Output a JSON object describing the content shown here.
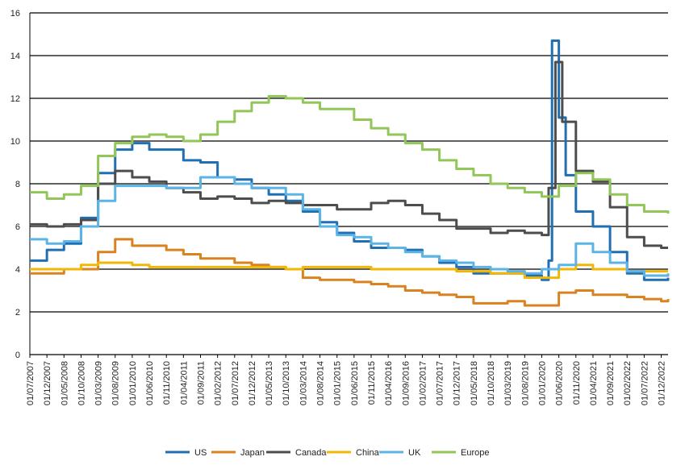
{
  "chart_data": {
    "type": "line",
    "title": "",
    "xlabel": "",
    "ylabel": "",
    "ylim": [
      0,
      16
    ],
    "yticks": [
      0,
      2,
      4,
      6,
      8,
      10,
      12,
      14,
      16
    ],
    "grid": "horizontal",
    "legend_position": "bottom",
    "x_tick_labels": [
      "01/07/2007",
      "01/12/2007",
      "01/05/2008",
      "01/10/2008",
      "01/03/2009",
      "01/08/2009",
      "01/01/2010",
      "01/06/2010",
      "01/11/2010",
      "01/04/2011",
      "01/09/2011",
      "01/02/2012",
      "01/07/2012",
      "01/12/2012",
      "01/05/2013",
      "01/10/2013",
      "01/03/2014",
      "01/08/2014",
      "01/01/2015",
      "01/06/2015",
      "01/11/2015",
      "01/04/2016",
      "01/09/2016",
      "01/02/2017",
      "01/07/2017",
      "01/12/2017",
      "01/05/2018",
      "01/10/2018",
      "01/03/2019",
      "01/08/2019",
      "01/01/2020",
      "01/06/2020",
      "01/11/2020",
      "01/04/2021",
      "01/09/2021",
      "01/02/2022",
      "01/07/2022",
      "01/12/2022"
    ],
    "series": [
      {
        "name": "US",
        "color": "#1f6fb2",
        "points": [
          [
            "2007-07",
            4.4
          ],
          [
            "2007-12",
            4.9
          ],
          [
            "2008-05",
            5.2
          ],
          [
            "2008-10",
            6.4
          ],
          [
            "2009-03",
            8.5
          ],
          [
            "2009-08",
            9.6
          ],
          [
            "2010-01",
            9.9
          ],
          [
            "2010-06",
            9.6
          ],
          [
            "2010-11",
            9.6
          ],
          [
            "2011-04",
            9.1
          ],
          [
            "2011-09",
            9.0
          ],
          [
            "2012-02",
            8.3
          ],
          [
            "2012-07",
            8.2
          ],
          [
            "2012-12",
            7.8
          ],
          [
            "2013-05",
            7.5
          ],
          [
            "2013-10",
            7.2
          ],
          [
            "2014-03",
            6.7
          ],
          [
            "2014-08",
            6.2
          ],
          [
            "2015-01",
            5.7
          ],
          [
            "2015-06",
            5.3
          ],
          [
            "2015-11",
            5.0
          ],
          [
            "2016-04",
            5.0
          ],
          [
            "2016-09",
            4.9
          ],
          [
            "2017-02",
            4.6
          ],
          [
            "2017-07",
            4.3
          ],
          [
            "2017-12",
            4.1
          ],
          [
            "2018-05",
            3.8
          ],
          [
            "2018-10",
            3.8
          ],
          [
            "2019-03",
            3.8
          ],
          [
            "2019-08",
            3.7
          ],
          [
            "2020-01",
            3.5
          ],
          [
            "2020-03",
            4.4
          ],
          [
            "2020-04",
            14.7
          ],
          [
            "2020-06",
            11.1
          ],
          [
            "2020-08",
            8.4
          ],
          [
            "2020-11",
            6.7
          ],
          [
            "2021-04",
            6.0
          ],
          [
            "2021-09",
            4.8
          ],
          [
            "2022-02",
            3.8
          ],
          [
            "2022-07",
            3.5
          ],
          [
            "2022-12",
            3.5
          ],
          [
            "2023-02",
            3.6
          ]
        ]
      },
      {
        "name": "Japan",
        "color": "#d9821f",
        "points": [
          [
            "2007-07",
            3.8
          ],
          [
            "2007-12",
            3.8
          ],
          [
            "2008-05",
            4.0
          ],
          [
            "2008-10",
            4.0
          ],
          [
            "2009-03",
            4.8
          ],
          [
            "2009-08",
            5.4
          ],
          [
            "2010-01",
            5.1
          ],
          [
            "2010-06",
            5.1
          ],
          [
            "2010-11",
            4.9
          ],
          [
            "2011-04",
            4.7
          ],
          [
            "2011-09",
            4.5
          ],
          [
            "2012-02",
            4.5
          ],
          [
            "2012-07",
            4.3
          ],
          [
            "2012-12",
            4.2
          ],
          [
            "2013-05",
            4.1
          ],
          [
            "2013-10",
            4.0
          ],
          [
            "2014-03",
            3.6
          ],
          [
            "2014-08",
            3.5
          ],
          [
            "2015-01",
            3.5
          ],
          [
            "2015-06",
            3.4
          ],
          [
            "2015-11",
            3.3
          ],
          [
            "2016-04",
            3.2
          ],
          [
            "2016-09",
            3.0
          ],
          [
            "2017-02",
            2.9
          ],
          [
            "2017-07",
            2.8
          ],
          [
            "2017-12",
            2.7
          ],
          [
            "2018-05",
            2.4
          ],
          [
            "2018-10",
            2.4
          ],
          [
            "2019-03",
            2.5
          ],
          [
            "2019-08",
            2.3
          ],
          [
            "2020-01",
            2.3
          ],
          [
            "2020-06",
            2.9
          ],
          [
            "2020-11",
            3.0
          ],
          [
            "2021-04",
            2.8
          ],
          [
            "2021-09",
            2.8
          ],
          [
            "2022-02",
            2.7
          ],
          [
            "2022-07",
            2.6
          ],
          [
            "2022-12",
            2.5
          ],
          [
            "2023-02",
            2.6
          ]
        ]
      },
      {
        "name": "Canada",
        "color": "#4d4d4d",
        "points": [
          [
            "2007-07",
            6.1
          ],
          [
            "2007-12",
            6.0
          ],
          [
            "2008-05",
            6.1
          ],
          [
            "2008-10",
            6.3
          ],
          [
            "2009-03",
            8.0
          ],
          [
            "2009-08",
            8.6
          ],
          [
            "2010-01",
            8.3
          ],
          [
            "2010-06",
            8.1
          ],
          [
            "2010-11",
            7.8
          ],
          [
            "2011-04",
            7.6
          ],
          [
            "2011-09",
            7.3
          ],
          [
            "2012-02",
            7.4
          ],
          [
            "2012-07",
            7.3
          ],
          [
            "2012-12",
            7.1
          ],
          [
            "2013-05",
            7.2
          ],
          [
            "2013-10",
            7.1
          ],
          [
            "2014-03",
            7.0
          ],
          [
            "2014-08",
            7.0
          ],
          [
            "2015-01",
            6.8
          ],
          [
            "2015-06",
            6.8
          ],
          [
            "2015-11",
            7.1
          ],
          [
            "2016-04",
            7.2
          ],
          [
            "2016-09",
            7.0
          ],
          [
            "2017-02",
            6.6
          ],
          [
            "2017-07",
            6.3
          ],
          [
            "2017-12",
            5.9
          ],
          [
            "2018-05",
            5.9
          ],
          [
            "2018-10",
            5.7
          ],
          [
            "2019-03",
            5.8
          ],
          [
            "2019-08",
            5.7
          ],
          [
            "2020-01",
            5.6
          ],
          [
            "2020-03",
            7.8
          ],
          [
            "2020-05",
            13.7
          ],
          [
            "2020-07",
            10.9
          ],
          [
            "2020-11",
            8.6
          ],
          [
            "2021-04",
            8.1
          ],
          [
            "2021-09",
            6.9
          ],
          [
            "2022-02",
            5.5
          ],
          [
            "2022-07",
            5.1
          ],
          [
            "2022-12",
            5.0
          ],
          [
            "2023-02",
            5.0
          ]
        ]
      },
      {
        "name": "China",
        "color": "#f2b705",
        "points": [
          [
            "2007-07",
            4.0
          ],
          [
            "2007-12",
            4.0
          ],
          [
            "2008-05",
            4.0
          ],
          [
            "2008-10",
            4.2
          ],
          [
            "2009-03",
            4.3
          ],
          [
            "2009-08",
            4.3
          ],
          [
            "2010-01",
            4.2
          ],
          [
            "2010-06",
            4.1
          ],
          [
            "2010-11",
            4.1
          ],
          [
            "2011-04",
            4.1
          ],
          [
            "2011-09",
            4.1
          ],
          [
            "2012-02",
            4.1
          ],
          [
            "2012-07",
            4.1
          ],
          [
            "2012-12",
            4.1
          ],
          [
            "2013-05",
            4.1
          ],
          [
            "2013-10",
            4.0
          ],
          [
            "2014-03",
            4.1
          ],
          [
            "2014-08",
            4.1
          ],
          [
            "2015-01",
            4.1
          ],
          [
            "2015-06",
            4.1
          ],
          [
            "2015-11",
            4.0
          ],
          [
            "2016-04",
            4.0
          ],
          [
            "2016-09",
            4.0
          ],
          [
            "2017-02",
            4.0
          ],
          [
            "2017-07",
            4.0
          ],
          [
            "2017-12",
            3.9
          ],
          [
            "2018-05",
            3.9
          ],
          [
            "2018-10",
            3.8
          ],
          [
            "2019-03",
            3.8
          ],
          [
            "2019-08",
            3.6
          ],
          [
            "2020-01",
            3.6
          ],
          [
            "2020-06",
            4.0
          ],
          [
            "2020-11",
            4.2
          ],
          [
            "2021-04",
            4.0
          ],
          [
            "2021-09",
            4.0
          ],
          [
            "2022-02",
            3.9
          ],
          [
            "2022-07",
            3.9
          ],
          [
            "2022-12",
            3.9
          ],
          [
            "2023-02",
            3.9
          ]
        ]
      },
      {
        "name": "UK",
        "color": "#5bb3e6",
        "points": [
          [
            "2007-07",
            5.4
          ],
          [
            "2007-12",
            5.2
          ],
          [
            "2008-05",
            5.3
          ],
          [
            "2008-10",
            6.0
          ],
          [
            "2009-03",
            7.2
          ],
          [
            "2009-08",
            7.9
          ],
          [
            "2010-01",
            7.9
          ],
          [
            "2010-06",
            7.9
          ],
          [
            "2010-11",
            7.8
          ],
          [
            "2011-04",
            7.8
          ],
          [
            "2011-09",
            8.3
          ],
          [
            "2012-02",
            8.3
          ],
          [
            "2012-07",
            8.0
          ],
          [
            "2012-12",
            7.8
          ],
          [
            "2013-05",
            7.8
          ],
          [
            "2013-10",
            7.5
          ],
          [
            "2014-03",
            6.8
          ],
          [
            "2014-08",
            6.0
          ],
          [
            "2015-01",
            5.6
          ],
          [
            "2015-06",
            5.5
          ],
          [
            "2015-11",
            5.2
          ],
          [
            "2016-04",
            5.0
          ],
          [
            "2016-09",
            4.8
          ],
          [
            "2017-02",
            4.6
          ],
          [
            "2017-07",
            4.4
          ],
          [
            "2017-12",
            4.3
          ],
          [
            "2018-05",
            4.1
          ],
          [
            "2018-10",
            4.0
          ],
          [
            "2019-03",
            3.9
          ],
          [
            "2019-08",
            3.8
          ],
          [
            "2020-01",
            4.0
          ],
          [
            "2020-06",
            4.2
          ],
          [
            "2020-11",
            5.2
          ],
          [
            "2021-04",
            4.8
          ],
          [
            "2021-09",
            4.3
          ],
          [
            "2022-02",
            3.9
          ],
          [
            "2022-07",
            3.7
          ],
          [
            "2022-12",
            3.7
          ],
          [
            "2023-02",
            3.8
          ]
        ]
      },
      {
        "name": "Europe",
        "color": "#92c658",
        "points": [
          [
            "2007-07",
            7.6
          ],
          [
            "2007-12",
            7.3
          ],
          [
            "2008-05",
            7.5
          ],
          [
            "2008-10",
            7.9
          ],
          [
            "2009-03",
            9.3
          ],
          [
            "2009-08",
            9.9
          ],
          [
            "2010-01",
            10.2
          ],
          [
            "2010-06",
            10.3
          ],
          [
            "2010-11",
            10.2
          ],
          [
            "2011-04",
            10.0
          ],
          [
            "2011-09",
            10.3
          ],
          [
            "2012-02",
            10.9
          ],
          [
            "2012-07",
            11.4
          ],
          [
            "2012-12",
            11.8
          ],
          [
            "2013-05",
            12.1
          ],
          [
            "2013-10",
            12.0
          ],
          [
            "2014-03",
            11.8
          ],
          [
            "2014-08",
            11.5
          ],
          [
            "2015-01",
            11.5
          ],
          [
            "2015-06",
            11.0
          ],
          [
            "2015-11",
            10.6
          ],
          [
            "2016-04",
            10.3
          ],
          [
            "2016-09",
            9.9
          ],
          [
            "2017-02",
            9.6
          ],
          [
            "2017-07",
            9.1
          ],
          [
            "2017-12",
            8.7
          ],
          [
            "2018-05",
            8.4
          ],
          [
            "2018-10",
            8.0
          ],
          [
            "2019-03",
            7.8
          ],
          [
            "2019-08",
            7.6
          ],
          [
            "2020-01",
            7.4
          ],
          [
            "2020-06",
            7.9
          ],
          [
            "2020-11",
            8.5
          ],
          [
            "2021-04",
            8.2
          ],
          [
            "2021-09",
            7.5
          ],
          [
            "2022-02",
            7.0
          ],
          [
            "2022-07",
            6.7
          ],
          [
            "2022-12",
            6.7
          ],
          [
            "2023-02",
            6.6
          ]
        ]
      }
    ]
  }
}
